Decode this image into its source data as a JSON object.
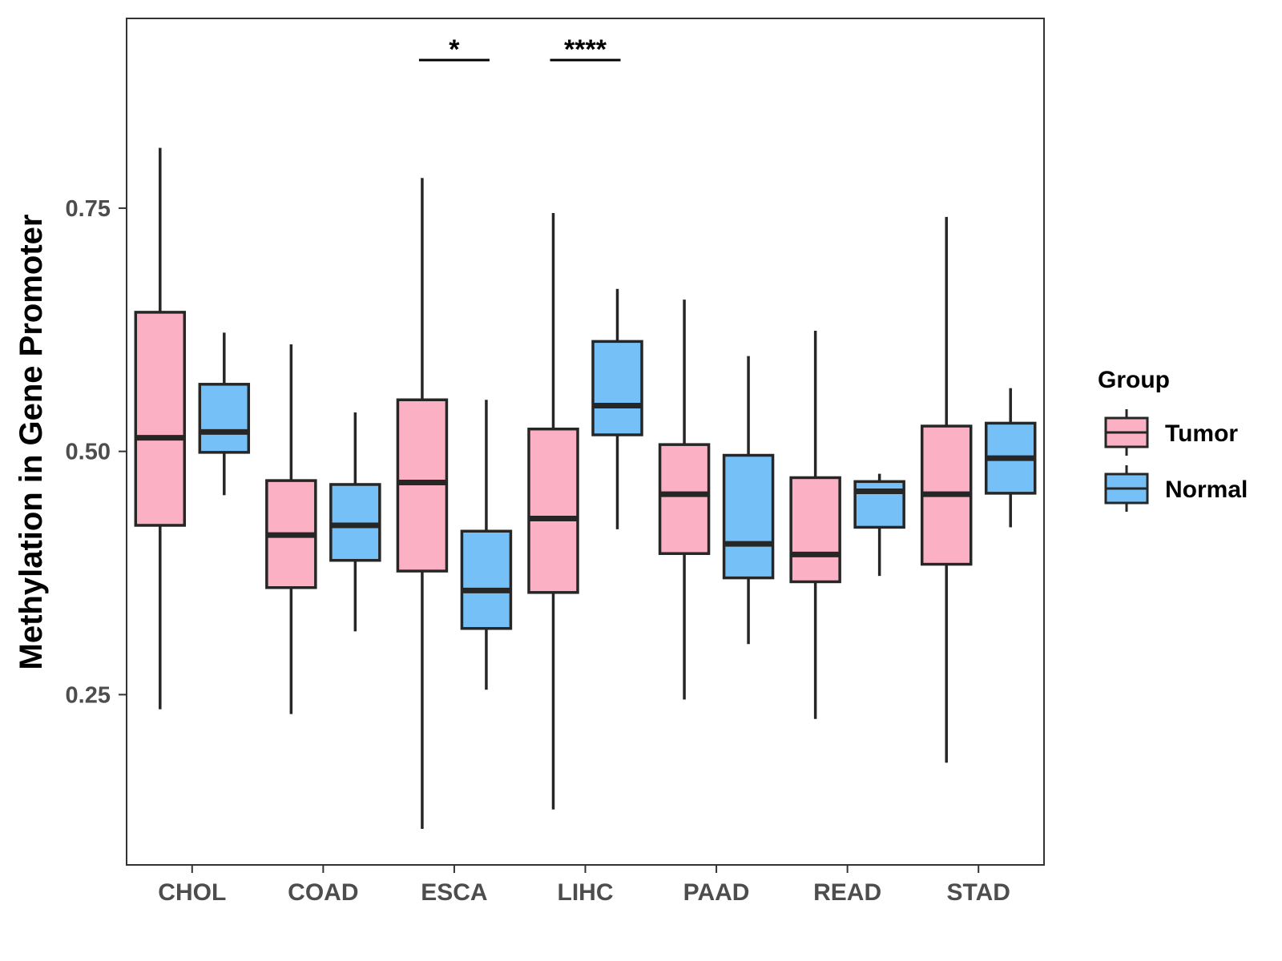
{
  "chart_data": {
    "type": "boxplot",
    "title": "",
    "xlabel": "",
    "ylabel": "Methylation in Gene Promoter",
    "ylim": [
      0.075,
      0.945
    ],
    "yticks": [
      0.25,
      0.5,
      0.75
    ],
    "ytick_labels": [
      "0.25",
      "0.50",
      "0.75"
    ],
    "grid": false,
    "categories": [
      "CHOL",
      "COAD",
      "ESCA",
      "LIHC",
      "PAAD",
      "READ",
      "STAD"
    ],
    "series": [
      {
        "name": "Tumor",
        "color": "#FBB1C3",
        "boxes": [
          {
            "min": 0.235,
            "q1": 0.424,
            "median": 0.514,
            "q3": 0.643,
            "max": 0.812
          },
          {
            "min": 0.23,
            "q1": 0.36,
            "median": 0.414,
            "q3": 0.47,
            "max": 0.61
          },
          {
            "min": 0.112,
            "q1": 0.377,
            "median": 0.468,
            "q3": 0.553,
            "max": 0.781
          },
          {
            "min": 0.132,
            "q1": 0.355,
            "median": 0.431,
            "q3": 0.523,
            "max": 0.745
          },
          {
            "min": 0.245,
            "q1": 0.395,
            "median": 0.456,
            "q3": 0.507,
            "max": 0.656
          },
          {
            "min": 0.225,
            "q1": 0.366,
            "median": 0.394,
            "q3": 0.473,
            "max": 0.624
          },
          {
            "min": 0.18,
            "q1": 0.384,
            "median": 0.456,
            "q3": 0.526,
            "max": 0.741
          }
        ]
      },
      {
        "name": "Normal",
        "color": "#75C1F7",
        "boxes": [
          {
            "min": 0.455,
            "q1": 0.499,
            "median": 0.52,
            "q3": 0.569,
            "max": 0.622
          },
          {
            "min": 0.315,
            "q1": 0.388,
            "median": 0.424,
            "q3": 0.466,
            "max": 0.54
          },
          {
            "min": 0.255,
            "q1": 0.318,
            "median": 0.357,
            "q3": 0.418,
            "max": 0.553
          },
          {
            "min": 0.42,
            "q1": 0.517,
            "median": 0.547,
            "q3": 0.613,
            "max": 0.667
          },
          {
            "min": 0.302,
            "q1": 0.37,
            "median": 0.405,
            "q3": 0.496,
            "max": 0.598
          },
          {
            "min": 0.372,
            "q1": 0.422,
            "median": 0.459,
            "q3": 0.469,
            "max": 0.477
          },
          {
            "min": 0.422,
            "q1": 0.457,
            "median": 0.493,
            "q3": 0.529,
            "max": 0.565
          }
        ]
      }
    ],
    "significance": [
      {
        "category": "ESCA",
        "label": "*"
      },
      {
        "category": "LIHC",
        "label": "****"
      }
    ],
    "legend": {
      "title": "Group",
      "position": "right",
      "entries": [
        "Tumor",
        "Normal"
      ]
    }
  }
}
